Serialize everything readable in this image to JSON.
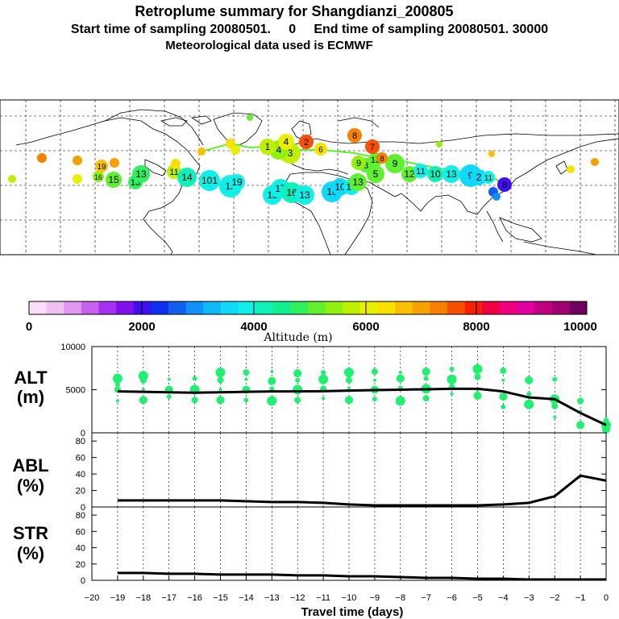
{
  "header": {
    "title": "Retroplume summary for Shangdianzi_200805",
    "line2": "Start time of sampling 20080501.     0     End time of sampling 20080501. 30000",
    "line3": "Meteorological data used is ECMWF"
  },
  "colorbar": {
    "title": "Altitude (m)",
    "tick_labels": [
      "0",
      "2000",
      "4000",
      "6000",
      "8000",
      "10000"
    ],
    "colors": [
      "#f8e0f8",
      "#f0c0f0",
      "#e098f0",
      "#c860f0",
      "#a830f0",
      "#8010f0",
      "#4010f0",
      "#1030f0",
      "#1060f0",
      "#1090f8",
      "#10b8f8",
      "#10d8f8",
      "#10f0e8",
      "#10f0b8",
      "#10f090",
      "#30f060",
      "#60f030",
      "#90f010",
      "#c0f000",
      "#e8f000",
      "#f8e000",
      "#f8c000",
      "#f8a000",
      "#f88000",
      "#f85000",
      "#f82000",
      "#f00040",
      "#f00080",
      "#e000a0",
      "#c00080",
      "#a00070",
      "#700060"
    ]
  },
  "map_labels": [
    "18",
    "17",
    "16",
    "19",
    "15",
    "18",
    "13",
    "13",
    "11",
    "10",
    "14",
    "101",
    "12",
    "19",
    "15",
    "17",
    "16",
    "13",
    "16",
    "10",
    "14",
    "13",
    "5",
    "8",
    "13",
    "9",
    "12",
    "11",
    "10",
    "13",
    "9",
    "2",
    "11",
    "8",
    "6",
    "5",
    "3",
    "4",
    "1",
    "4",
    "2",
    "6",
    "8",
    "7",
    "8",
    "9",
    "16",
    "17",
    "16",
    "15"
  ],
  "chart_data": [
    {
      "panel": "ALT",
      "type": "line+scatter",
      "ylabel": "ALT\n(m)",
      "ylim": [
        0,
        10000
      ],
      "yticks": [
        "0",
        "5000",
        "10000"
      ],
      "x": [
        -19,
        -18,
        -17,
        -16,
        -15,
        -14,
        -13,
        -12,
        -11,
        -10,
        -9,
        -8,
        -7,
        -6,
        -5,
        -4,
        -3,
        -2,
        -1,
        0
      ],
      "values": [
        4800,
        4750,
        4700,
        4650,
        4700,
        4750,
        4800,
        4800,
        4820,
        4900,
        4950,
        5000,
        5050,
        5100,
        5100,
        4800,
        4100,
        3900,
        2300,
        900
      ],
      "scatter_points": [
        [
          -19,
          3700
        ],
        [
          -19,
          5000
        ],
        [
          -19,
          6300
        ],
        [
          -19,
          5600
        ],
        [
          -18,
          3800
        ],
        [
          -18,
          5000
        ],
        [
          -18,
          6100
        ],
        [
          -18,
          6600
        ],
        [
          -17,
          4200
        ],
        [
          -17,
          5000
        ],
        [
          -17,
          6200
        ],
        [
          -16,
          3800
        ],
        [
          -16,
          5000
        ],
        [
          -16,
          6300
        ],
        [
          -15,
          3800
        ],
        [
          -15,
          5000
        ],
        [
          -15,
          6100
        ],
        [
          -15,
          7000
        ],
        [
          -14,
          3800
        ],
        [
          -14,
          5000
        ],
        [
          -14,
          6200
        ],
        [
          -14,
          7000
        ],
        [
          -13,
          3700
        ],
        [
          -13,
          5100
        ],
        [
          -13,
          6000
        ],
        [
          -13,
          7100
        ],
        [
          -12,
          3800
        ],
        [
          -12,
          5000
        ],
        [
          -12,
          6100
        ],
        [
          -12,
          6900
        ],
        [
          -11,
          4000
        ],
        [
          -11,
          5100
        ],
        [
          -11,
          6200
        ],
        [
          -11,
          7000
        ],
        [
          -10,
          3800
        ],
        [
          -10,
          5200
        ],
        [
          -10,
          6100
        ],
        [
          -10,
          7000
        ],
        [
          -9,
          3900
        ],
        [
          -9,
          5000
        ],
        [
          -9,
          6100
        ],
        [
          -9,
          7100
        ],
        [
          -8,
          3700
        ],
        [
          -8,
          5200
        ],
        [
          -8,
          6300
        ],
        [
          -8,
          7000
        ],
        [
          -7,
          4000
        ],
        [
          -7,
          5100
        ],
        [
          -7,
          6300
        ],
        [
          -7,
          7100
        ],
        [
          -6,
          4500
        ],
        [
          -6,
          5300
        ],
        [
          -6,
          6200
        ],
        [
          -6,
          7400
        ],
        [
          -5,
          4300
        ],
        [
          -5,
          5000
        ],
        [
          -5,
          6500
        ],
        [
          -5,
          7400
        ],
        [
          -4,
          3000
        ],
        [
          -4,
          4200
        ],
        [
          -4,
          6100
        ],
        [
          -4,
          7200
        ],
        [
          -3,
          3300
        ],
        [
          -3,
          4500
        ],
        [
          -3,
          6100
        ],
        [
          -2,
          1800
        ],
        [
          -2,
          3100
        ],
        [
          -2,
          3900
        ],
        [
          -2,
          6200
        ],
        [
          -1,
          900
        ],
        [
          -1,
          2500
        ],
        [
          -1,
          3700
        ],
        [
          0,
          900
        ],
        [
          0,
          1500
        ],
        [
          0,
          400
        ]
      ]
    },
    {
      "panel": "ABL",
      "type": "line",
      "ylabel": "ABL\n(%)",
      "ylim": [
        0,
        90
      ],
      "yticks": [
        "0",
        "20",
        "40",
        "60",
        "80"
      ],
      "x": [
        -19,
        -18,
        -17,
        -16,
        -15,
        -14,
        -13,
        -12,
        -11,
        -10,
        -9,
        -8,
        -7,
        -6,
        -5,
        -4,
        -3,
        -2,
        -1,
        0
      ],
      "values": [
        8,
        8,
        8,
        8,
        8,
        7,
        6,
        6,
        5,
        3,
        2,
        2,
        2,
        2,
        2,
        3,
        5,
        13,
        38,
        32
      ]
    },
    {
      "panel": "STR",
      "type": "line",
      "ylabel": "STR\n(%)",
      "ylim": [
        0,
        90
      ],
      "yticks": [
        "0",
        "20",
        "40",
        "60",
        "80"
      ],
      "x": [
        -19,
        -18,
        -17,
        -16,
        -15,
        -14,
        -13,
        -12,
        -11,
        -10,
        -9,
        -8,
        -7,
        -6,
        -5,
        -4,
        -3,
        -2,
        -1,
        0
      ],
      "values": [
        9,
        9,
        8,
        8,
        7,
        7,
        7,
        6,
        6,
        5,
        5,
        4,
        3,
        3,
        2,
        2,
        1,
        1,
        1,
        1
      ]
    }
  ],
  "xaxis": {
    "label": "Travel time (days)",
    "tick_labels": [
      "−20",
      "−19",
      "−18",
      "−17",
      "−16",
      "−15",
      "−14",
      "−13",
      "−12",
      "−11",
      "−10",
      "−9",
      "−8",
      "−7",
      "−6",
      "−5",
      "−4",
      "−3",
      "−2",
      "−1",
      "0"
    ]
  }
}
